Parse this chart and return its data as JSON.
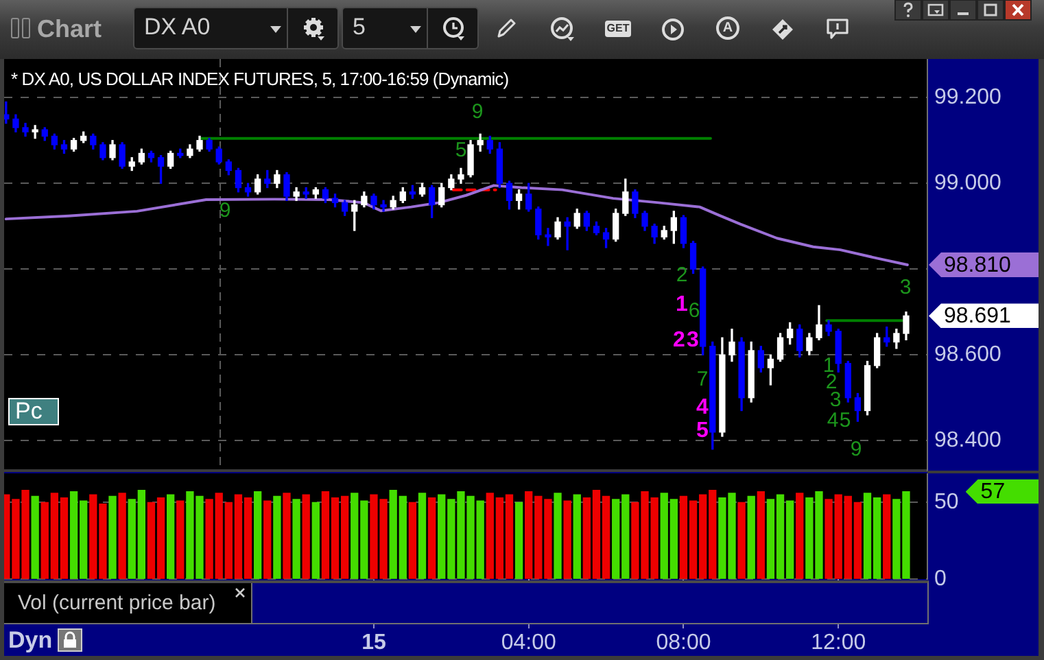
{
  "chart_data": [
    {
      "type": "candlestick",
      "title": "* DX A0, US DOLLAR INDEX FUTURES, 5, 17:00-16:59 (Dynamic)",
      "xlim": [
        "--01-14T14:27",
        "--01-15T14:18"
      ],
      "ylim": [
        98.33,
        99.29
      ],
      "yticks": [
        {
          "value": 99.2,
          "label": "99.200"
        },
        {
          "value": 99,
          "label": "99.000"
        },
        {
          "value": 98.8,
          "label": null
        },
        {
          "value": 98.6,
          "label": "98.600"
        },
        {
          "value": 98.4,
          "label": "98.400"
        }
      ],
      "tick_labels": "y",
      "grid": "y",
      "series": [
        {
          "x": [
            "--01-14T14:30",
            "--01-14T14:45",
            "--01-14T15:00",
            "--01-14T15:15",
            "--01-14T15:30",
            "--01-14T15:45",
            "--01-14T16:00",
            "--01-14T16:15",
            "--01-14T16:30",
            "--01-14T16:45",
            "--01-14T17:00",
            "--01-14T17:15",
            "--01-14T17:30",
            "--01-14T17:45",
            "--01-14T18:00",
            "--01-14T18:15",
            "--01-14T18:30",
            "--01-14T18:45",
            "--01-14T19:00",
            "--01-14T19:15",
            "--01-14T19:30",
            "--01-14T19:45",
            "--01-14T20:00",
            "--01-14T20:15",
            "--01-14T20:30",
            "--01-14T20:45",
            "--01-14T21:00",
            "--01-14T21:15",
            "--01-14T21:30",
            "--01-14T21:45",
            "--01-14T22:00",
            "--01-14T22:15",
            "--01-14T22:30",
            "--01-14T22:45",
            "--01-14T23:00",
            "--01-14T23:15",
            "--01-14T23:30",
            "--01-14T23:45",
            "--01-15T00:00",
            "--01-15T00:15",
            "--01-15T00:30",
            "--01-15T00:45",
            "--01-15T01:00",
            "--01-15T01:15",
            "--01-15T01:30",
            "--01-15T01:45",
            "--01-15T02:00",
            "--01-15T02:15",
            "--01-15T02:30",
            "--01-15T02:45",
            "--01-15T03:00",
            "--01-15T03:15",
            "--01-15T03:30",
            "--01-15T03:45",
            "--01-15T04:00",
            "--01-15T04:15",
            "--01-15T04:30",
            "--01-15T04:45",
            "--01-15T05:00",
            "--01-15T05:15",
            "--01-15T05:30",
            "--01-15T05:45",
            "--01-15T06:00",
            "--01-15T06:15",
            "--01-15T06:30",
            "--01-15T06:45",
            "--01-15T07:00",
            "--01-15T07:15",
            "--01-15T07:30",
            "--01-15T07:45",
            "--01-15T08:00",
            "--01-15T08:15",
            "--01-15T08:30",
            "--01-15T08:45",
            "--01-15T09:00",
            "--01-15T09:15",
            "--01-15T09:30",
            "--01-15T09:45",
            "--01-15T10:00",
            "--01-15T10:15",
            "--01-15T10:30",
            "--01-15T10:45",
            "--01-15T11:00",
            "--01-15T11:15",
            "--01-15T11:30",
            "--01-15T11:45",
            "--01-15T12:00",
            "--01-15T12:15",
            "--01-15T12:30",
            "--01-15T12:45",
            "--01-15T13:00",
            "--01-15T13:15",
            "--01-15T13:30",
            "--01-15T13:45"
          ],
          "ohlc": [
            [
              99.16,
              99.19,
              99.14,
              99.15
            ],
            [
              99.15,
              99.16,
              99.12,
              99.13
            ],
            [
              99.13,
              99.14,
              99.11,
              99.12
            ],
            [
              99.12,
              99.135,
              99.105,
              99.125
            ],
            [
              99.125,
              99.13,
              99.1,
              99.11
            ],
            [
              99.11,
              99.115,
              99.08,
              99.09
            ],
            [
              99.09,
              99.1,
              99.07,
              99.08
            ],
            [
              99.08,
              99.105,
              99.075,
              99.1
            ],
            [
              99.1,
              99.12,
              99.095,
              99.11
            ],
            [
              99.11,
              99.115,
              99.08,
              99.09
            ],
            [
              99.09,
              99.095,
              99.055,
              99.06
            ],
            [
              99.06,
              99.1,
              99.055,
              99.09
            ],
            [
              99.09,
              99.095,
              99.035,
              99.04
            ],
            [
              99.04,
              99.06,
              99.03,
              99.05
            ],
            [
              99.05,
              99.08,
              99.045,
              99.07
            ],
            [
              99.07,
              99.075,
              99.05,
              99.06
            ],
            [
              99.06,
              99.065,
              99,
              99.04
            ],
            [
              99.04,
              99.075,
              99.035,
              99.07
            ],
            [
              99.07,
              99.08,
              99.06,
              99.065
            ],
            [
              99.065,
              99.09,
              99.06,
              99.08
            ],
            [
              99.08,
              99.11,
              99.075,
              99.1
            ],
            [
              99.1,
              99.105,
              99.075,
              99.08
            ],
            [
              99.08,
              99.085,
              99.045,
              99.05
            ],
            [
              99.05,
              99.055,
              99.02,
              99.03
            ],
            [
              99.03,
              99.035,
              98.98,
              98.99
            ],
            [
              98.99,
              99,
              98.97,
              98.98
            ],
            [
              98.98,
              99.02,
              98.975,
              99.01
            ],
            [
              99.01,
              99.03,
              98.99,
              99
            ],
            [
              99,
              99.03,
              98.99,
              99.02
            ],
            [
              99.02,
              99.025,
              98.96,
              98.97
            ],
            [
              98.97,
              98.99,
              98.96,
              98.98
            ],
            [
              98.98,
              98.99,
              98.965,
              98.975
            ],
            [
              98.975,
              98.99,
              98.965,
              98.985
            ],
            [
              98.985,
              98.99,
              98.955,
              98.965
            ],
            [
              98.965,
              98.975,
              98.945,
              98.955
            ],
            [
              98.955,
              98.96,
              98.925,
              98.935
            ],
            [
              98.935,
              98.96,
              98.89,
              98.95
            ],
            [
              98.95,
              98.98,
              98.945,
              98.97
            ],
            [
              98.97,
              98.975,
              98.94,
              98.95
            ],
            [
              98.95,
              98.96,
              98.935,
              98.945
            ],
            [
              98.945,
              98.97,
              98.94,
              98.96
            ],
            [
              98.96,
              98.99,
              98.955,
              98.98
            ],
            [
              98.98,
              98.995,
              98.965,
              98.975
            ],
            [
              98.975,
              99,
              98.97,
              98.99
            ],
            [
              98.99,
              98.995,
              98.92,
              98.95
            ],
            [
              98.95,
              99,
              98.945,
              98.99
            ],
            [
              98.99,
              99.02,
              98.985,
              99.01
            ],
            [
              99.01,
              99.035,
              99,
              99.02
            ],
            [
              99.02,
              99.1,
              99.015,
              99.09
            ],
            [
              99.09,
              99.115,
              99.075,
              99.1
            ],
            [
              99.1,
              99.11,
              99.07,
              99.08
            ],
            [
              99.08,
              99.095,
              98.99,
              99
            ],
            [
              99,
              99.005,
              98.94,
              98.96
            ],
            [
              98.96,
              98.985,
              98.94,
              98.975
            ],
            [
              98.975,
              99,
              98.935,
              98.94
            ],
            [
              98.94,
              98.945,
              98.87,
              98.88
            ],
            [
              98.88,
              98.895,
              98.855,
              98.875
            ],
            [
              98.875,
              98.92,
              98.87,
              98.91
            ],
            [
              98.91,
              98.92,
              98.845,
              98.9
            ],
            [
              98.9,
              98.94,
              98.895,
              98.93
            ],
            [
              98.93,
              98.935,
              98.89,
              98.9
            ],
            [
              98.9,
              98.91,
              98.88,
              98.885
            ],
            [
              98.885,
              98.895,
              98.85,
              98.87
            ],
            [
              98.87,
              98.94,
              98.865,
              98.93
            ],
            [
              98.93,
              99.01,
              98.925,
              98.98
            ],
            [
              98.98,
              98.985,
              98.92,
              98.93
            ],
            [
              98.93,
              98.935,
              98.89,
              98.9
            ],
            [
              98.9,
              98.905,
              98.86,
              98.875
            ],
            [
              98.875,
              98.9,
              98.87,
              98.89
            ],
            [
              98.89,
              98.935,
              98.86,
              98.92
            ],
            [
              98.92,
              98.925,
              98.85,
              98.86
            ],
            [
              98.86,
              98.865,
              98.79,
              98.8
            ],
            [
              98.8,
              98.805,
              98.6,
              98.62
            ],
            [
              98.62,
              98.63,
              98.38,
              98.42
            ],
            [
              98.42,
              98.64,
              98.41,
              98.6
            ],
            [
              98.6,
              98.66,
              98.585,
              98.63
            ],
            [
              98.63,
              98.64,
              98.47,
              98.5
            ],
            [
              98.5,
              98.63,
              98.49,
              98.61
            ],
            [
              98.61,
              98.62,
              98.56,
              98.57
            ],
            [
              98.57,
              98.6,
              98.53,
              98.59
            ],
            [
              98.59,
              98.65,
              98.585,
              98.64
            ],
            [
              98.64,
              98.675,
              98.625,
              98.66
            ],
            [
              98.66,
              98.67,
              98.595,
              98.61
            ],
            [
              98.61,
              98.65,
              98.6,
              98.64
            ],
            [
              98.64,
              98.715,
              98.635,
              98.67
            ],
            [
              98.67,
              98.68,
              98.645,
              98.655
            ],
            [
              98.655,
              98.66,
              98.56,
              98.58
            ],
            [
              98.58,
              98.585,
              98.49,
              98.5
            ],
            [
              98.5,
              98.51,
              98.445,
              98.47
            ],
            [
              98.47,
              98.585,
              98.46,
              98.575
            ],
            [
              98.575,
              98.65,
              98.57,
              98.64
            ],
            [
              98.64,
              98.665,
              98.62,
              98.63
            ],
            [
              98.63,
              98.66,
              98.615,
              98.65
            ],
            [
              98.65,
              98.7,
              98.635,
              98.691
            ]
          ],
          "colors": [
            "#0000ff",
            "#0000ff",
            "#0000ff",
            "#ffffff",
            "#0000ff",
            "#0000ff",
            "#0000ff",
            "#ffffff",
            "#ffffff",
            "#0000ff",
            "#0000ff",
            "#ffffff",
            "#0000ff",
            "#ffffff",
            "#ffffff",
            "#0000ff",
            "#0000ff",
            "#ffffff",
            "#0000ff",
            "#ffffff",
            "#ffffff",
            "#0000ff",
            "#0000ff",
            "#0000ff",
            "#0000ff",
            "#0000ff",
            "#ffffff",
            "#0000ff",
            "#ffffff",
            "#0000ff",
            "#ffffff",
            "#0000ff",
            "#ffffff",
            "#0000ff",
            "#0000ff",
            "#0000ff",
            "#ffffff",
            "#ffffff",
            "#0000ff",
            "#0000ff",
            "#ffffff",
            "#ffffff",
            "#0000ff",
            "#ffffff",
            "#0000ff",
            "#ffffff",
            "#ffffff",
            "#ffffff",
            "#ffffff",
            "#ffffff",
            "#0000ff",
            "#0000ff",
            "#0000ff",
            "#ffffff",
            "#0000ff",
            "#0000ff",
            "#0000ff",
            "#ffffff",
            "#0000ff",
            "#ffffff",
            "#0000ff",
            "#0000ff",
            "#0000ff",
            "#ffffff",
            "#ffffff",
            "#0000ff",
            "#0000ff",
            "#0000ff",
            "#ffffff",
            "#ffffff",
            "#0000ff",
            "#0000ff",
            "#0000ff",
            "#0000ff",
            "#ffffff",
            "#ffffff",
            "#0000ff",
            "#ffffff",
            "#0000ff",
            "#ffffff",
            "#ffffff",
            "#ffffff",
            "#0000ff",
            "#ffffff",
            "#ffffff",
            "#0000ff",
            "#0000ff",
            "#0000ff",
            "#0000ff",
            "#ffffff",
            "#ffffff",
            "#0000ff",
            "#ffffff",
            "#ffffff"
          ]
        },
        {
          "type": "line",
          "color": "#9b6fd6",
          "x": [
            "--01-14T14:30",
            "--01-14T16:07",
            "--01-14T17:53",
            "--01-14T19:40",
            "--01-14T21:26",
            "--01-14T22:51",
            "--01-14T23:44",
            "--01-15T00:11",
            "--01-15T00:58",
            "--01-15T01:41",
            "--01-15T02:23",
            "--01-15T03:06",
            "--01-15T03:49",
            "--01-15T04:52",
            "--01-15T06:11",
            "--01-15T07:21",
            "--01-15T08:25",
            "--01-15T08:56",
            "--01-15T09:28",
            "--01-15T10:25",
            "--01-15T11:21",
            "--01-15T12:03",
            "--01-15T13:01",
            "--01-15T13:47"
          ],
          "values": [
            98.917,
            98.924,
            98.935,
            98.962,
            98.963,
            98.962,
            98.955,
            98.936,
            98.945,
            98.955,
            98.972,
            98.995,
            98.99,
            98.985,
            98.965,
            98.955,
            98.945,
            98.925,
            98.905,
            98.872,
            98.852,
            98.845,
            98.825,
            98.81
          ]
        },
        {
          "type": "line",
          "color": "#008000",
          "x": [
            "--01-14T19:33",
            "--01-15T08:42"
          ],
          "values": [
            99.105,
            99.105
          ]
        },
        {
          "type": "line",
          "color": "#008000",
          "x": [
            "--01-15T11:42",
            "--01-15T13:39"
          ],
          "values": [
            98.68,
            98.68
          ]
        },
        {
          "type": "line",
          "color": "#ff0000",
          "line_style": "dashed",
          "x": [
            "--01-15T02:03",
            "--01-15T03:09"
          ],
          "values": [
            98.985,
            98.985
          ]
        }
      ],
      "ref_lines": [
        {
          "axis": "x",
          "value": "--01-14T20:00",
          "color": "#5a5a5a",
          "line_style": "dashed"
        }
      ],
      "annotations": [
        "Chart",
        "DX A0",
        "5",
        "GET",
        "A",
        "Pc",
        "9",
        "9",
        "5",
        "2",
        "1",
        "6",
        "2",
        "3",
        "7",
        "4",
        "5",
        "1",
        "2",
        "3",
        "4",
        "5",
        "9",
        "3",
        {
          "text": "98.810",
          "x": "--01-15T13:47",
          "y": 98.81
        },
        {
          "text": "98.691",
          "x": "--01-15T13:45",
          "y": 98.691
        }
      ]
    },
    {
      "type": "bar",
      "title": "Vol (current price bar)",
      "x": [
        "--01-14T14:30",
        "--01-14T14:45",
        "--01-14T15:00",
        "--01-14T15:15",
        "--01-14T15:30",
        "--01-14T15:45",
        "--01-14T16:00",
        "--01-14T16:15",
        "--01-14T16:30",
        "--01-14T16:45",
        "--01-14T17:00",
        "--01-14T17:15",
        "--01-14T17:30",
        "--01-14T17:45",
        "--01-14T18:00",
        "--01-14T18:15",
        "--01-14T18:30",
        "--01-14T18:45",
        "--01-14T19:00",
        "--01-14T19:15",
        "--01-14T19:30",
        "--01-14T19:45",
        "--01-14T20:00",
        "--01-14T20:15",
        "--01-14T20:30",
        "--01-14T20:45",
        "--01-14T21:00",
        "--01-14T21:15",
        "--01-14T21:30",
        "--01-14T21:45",
        "--01-14T22:00",
        "--01-14T22:15",
        "--01-14T22:30",
        "--01-14T22:45",
        "--01-14T23:00",
        "--01-14T23:15",
        "--01-14T23:30",
        "--01-14T23:45",
        "--01-15T00:00",
        "--01-15T00:15",
        "--01-15T00:30",
        "--01-15T00:45",
        "--01-15T01:00",
        "--01-15T01:15",
        "--01-15T01:30",
        "--01-15T01:45",
        "--01-15T02:00",
        "--01-15T02:15",
        "--01-15T02:30",
        "--01-15T02:45",
        "--01-15T03:00",
        "--01-15T03:15",
        "--01-15T03:30",
        "--01-15T03:45",
        "--01-15T04:00",
        "--01-15T04:15",
        "--01-15T04:30",
        "--01-15T04:45",
        "--01-15T05:00",
        "--01-15T05:15",
        "--01-15T05:30",
        "--01-15T05:45",
        "--01-15T06:00",
        "--01-15T06:15",
        "--01-15T06:30",
        "--01-15T06:45",
        "--01-15T07:00",
        "--01-15T07:15",
        "--01-15T07:30",
        "--01-15T07:45",
        "--01-15T08:00",
        "--01-15T08:15",
        "--01-15T08:30",
        "--01-15T08:45",
        "--01-15T09:00",
        "--01-15T09:15",
        "--01-15T09:30",
        "--01-15T09:45",
        "--01-15T10:00",
        "--01-15T10:15",
        "--01-15T10:30",
        "--01-15T10:45",
        "--01-15T11:00",
        "--01-15T11:15",
        "--01-15T11:30",
        "--01-15T11:45",
        "--01-15T12:00",
        "--01-15T12:15",
        "--01-15T12:30",
        "--01-15T12:45",
        "--01-15T13:00",
        "--01-15T13:15",
        "--01-15T13:30",
        "--01-15T13:45"
      ],
      "values": [
        55,
        52,
        58,
        54,
        50,
        56,
        53,
        57,
        51,
        55,
        49,
        54,
        56,
        52,
        58,
        50,
        53,
        55,
        51,
        57,
        54,
        52,
        56,
        50,
        55,
        53,
        57,
        51,
        54,
        56,
        52,
        55,
        50,
        57,
        53,
        54,
        56,
        51,
        55,
        52,
        58,
        54,
        50,
        56,
        53,
        55,
        52,
        57,
        54,
        51,
        56,
        53,
        55,
        50,
        57,
        54,
        52,
        56,
        51,
        55,
        53,
        58,
        54,
        52,
        55,
        50,
        57,
        53,
        56,
        52,
        54,
        51,
        55,
        58,
        53,
        56,
        50,
        54,
        57,
        52,
        55,
        51,
        56,
        53,
        57,
        52,
        55,
        54,
        50,
        56,
        53,
        55,
        52,
        57
      ],
      "colors": [
        "#ee0000",
        "#ee0000",
        "#ee0000",
        "#44dd00",
        "#ee0000",
        "#ee0000",
        "#ee0000",
        "#44dd00",
        "#44dd00",
        "#ee0000",
        "#ee0000",
        "#44dd00",
        "#ee0000",
        "#44dd00",
        "#44dd00",
        "#ee0000",
        "#ee0000",
        "#44dd00",
        "#ee0000",
        "#44dd00",
        "#44dd00",
        "#ee0000",
        "#ee0000",
        "#ee0000",
        "#ee0000",
        "#ee0000",
        "#44dd00",
        "#ee0000",
        "#44dd00",
        "#ee0000",
        "#44dd00",
        "#ee0000",
        "#44dd00",
        "#ee0000",
        "#ee0000",
        "#ee0000",
        "#44dd00",
        "#44dd00",
        "#ee0000",
        "#ee0000",
        "#44dd00",
        "#44dd00",
        "#ee0000",
        "#44dd00",
        "#ee0000",
        "#44dd00",
        "#44dd00",
        "#44dd00",
        "#44dd00",
        "#44dd00",
        "#ee0000",
        "#ee0000",
        "#ee0000",
        "#44dd00",
        "#ee0000",
        "#ee0000",
        "#ee0000",
        "#44dd00",
        "#ee0000",
        "#44dd00",
        "#ee0000",
        "#ee0000",
        "#ee0000",
        "#44dd00",
        "#44dd00",
        "#ee0000",
        "#ee0000",
        "#ee0000",
        "#44dd00",
        "#44dd00",
        "#ee0000",
        "#ee0000",
        "#ee0000",
        "#ee0000",
        "#44dd00",
        "#44dd00",
        "#ee0000",
        "#44dd00",
        "#ee0000",
        "#44dd00",
        "#44dd00",
        "#44dd00",
        "#ee0000",
        "#44dd00",
        "#44dd00",
        "#ee0000",
        "#ee0000",
        "#ee0000",
        "#ee0000",
        "#44dd00",
        "#44dd00",
        "#ee0000",
        "#44dd00",
        "#44dd00"
      ],
      "xlim": [
        "--01-14T14:27",
        "--01-15T14:18"
      ],
      "xticks": [
        {
          "value": "--01-15T00:00",
          "label": "15"
        },
        {
          "value": "--01-15T04:00",
          "label": "04:00"
        },
        {
          "value": "--01-15T08:00",
          "label": "08:00"
        },
        {
          "value": "--01-15T12:00",
          "label": "12:00"
        }
      ],
      "ylim": [
        0,
        69
      ],
      "yticks": [
        0,
        50
      ],
      "grid": "y",
      "annotations": [
        "Dyn",
        "57"
      ]
    }
  ]
}
